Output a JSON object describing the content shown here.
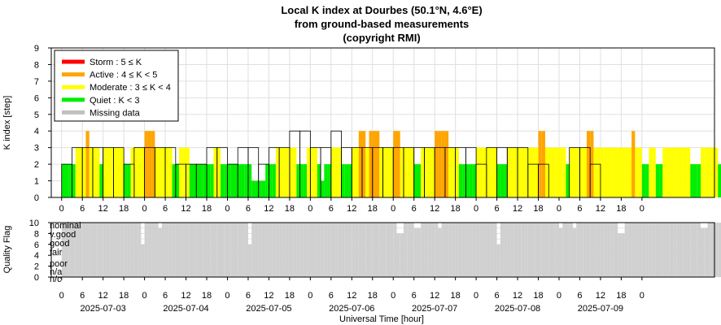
{
  "chart_data": {
    "type": "bar",
    "title": [
      "Local K index at Dourbes (50.1°N, 4.6°E)",
      "from ground-based measurements",
      "(copyright RMI)"
    ],
    "xlabel": "Universal Time [hour]",
    "ylabel_top": "K index [step]",
    "ylabel_bottom": "Quality Flag",
    "ylim_top": [
      0,
      9
    ],
    "ylim_bottom": [
      0,
      10
    ],
    "x_hour_range": [
      -3,
      189
    ],
    "hour_ticks": [
      "0",
      "6",
      "12",
      "18",
      "0",
      "6",
      "12",
      "18",
      "0",
      "6",
      "12",
      "18",
      "0",
      "6",
      "12",
      "18",
      "0",
      "6",
      "12",
      "18",
      "0",
      "6",
      "12",
      "18",
      "0",
      "6",
      "12",
      "18",
      "0"
    ],
    "dates": [
      "2025-07-03",
      "2025-07-04",
      "2025-07-05",
      "2025-07-06",
      "2025-07-07",
      "2025-07-08",
      "2025-07-09"
    ],
    "k_ticks": [
      "0",
      "1",
      "2",
      "3",
      "4",
      "5",
      "6",
      "7",
      "8",
      "9"
    ],
    "q_ticks": [
      "0",
      "2",
      "4",
      "6",
      "8",
      "10"
    ],
    "quality_labels": [
      "nominal",
      "v.good",
      "good",
      "fair",
      "poor",
      "n/a",
      "n/c"
    ],
    "legend": [
      {
        "label": "Storm : 5 ≤ K",
        "color": "#ff0000"
      },
      {
        "label": "Active : 4 ≤ K < 5",
        "color": "#ffa500"
      },
      {
        "label": "Moderate : 3 ≤ K < 4",
        "color": "#ffff00"
      },
      {
        "label": "Quiet : K < 3",
        "color": "#00ee00"
      },
      {
        "label": "Missing data",
        "color": "#c0c0c0"
      }
    ],
    "colors": {
      "storm": "#ff0000",
      "active": "#ffa500",
      "moderate": "#ffff00",
      "quiet": "#00ee00",
      "missing": "#c0c0c0",
      "quality": "#d0d0d0"
    },
    "k_3h": [
      2,
      3,
      3,
      3,
      3,
      3,
      2,
      3,
      3,
      3,
      3,
      2,
      2,
      2,
      3,
      3,
      2,
      3,
      3,
      2,
      3,
      3,
      4,
      4,
      3,
      3,
      4,
      3,
      3,
      3,
      3,
      3,
      3,
      3,
      3,
      3,
      3,
      3,
      3,
      3,
      2,
      3,
      3,
      3,
      3,
      2,
      2,
      0,
      0,
      3,
      3,
      2,
      0
    ],
    "k_1h": [
      2,
      2,
      2,
      2,
      3,
      3,
      3,
      4,
      3,
      3,
      3,
      2,
      3,
      3,
      3,
      3,
      3,
      3,
      2,
      2,
      3,
      3,
      3,
      3,
      4,
      4,
      4,
      3,
      3,
      3,
      3,
      3,
      2,
      2,
      3,
      3,
      3,
      2,
      2,
      2,
      2,
      2,
      2,
      2,
      3,
      3,
      2,
      2,
      2,
      2,
      2,
      2,
      2,
      2,
      2,
      1,
      1,
      1,
      1,
      2,
      2,
      2,
      3,
      3,
      3,
      3,
      3,
      3,
      2,
      2,
      2,
      3,
      3,
      3,
      2,
      1,
      2,
      2,
      3,
      3,
      3,
      2,
      2,
      2,
      3,
      3,
      4,
      4,
      3,
      4,
      4,
      4,
      3,
      3,
      3,
      3,
      4,
      4,
      3,
      3,
      3,
      3,
      2,
      2,
      3,
      3,
      3,
      3,
      4,
      4,
      4,
      4,
      3,
      3,
      3,
      2,
      2,
      2,
      2,
      2,
      3,
      3,
      3,
      3,
      3,
      3,
      2,
      2,
      2,
      3,
      3,
      3,
      3,
      3,
      3,
      3,
      3,
      3,
      4,
      4,
      3,
      3,
      3,
      3,
      3,
      3,
      2,
      3,
      3,
      3,
      3,
      3,
      4,
      4,
      3,
      3,
      3,
      3,
      3,
      3,
      3,
      3,
      3,
      3,
      3,
      4,
      3,
      3,
      2,
      2,
      3,
      3,
      2,
      2,
      3,
      3,
      3,
      3,
      3,
      3,
      3,
      3,
      2,
      2,
      2,
      3,
      3,
      3,
      3,
      3,
      2,
      2,
      3,
      3,
      2,
      2,
      3,
      3,
      2,
      2,
      2,
      2,
      2,
      2,
      2,
      3,
      3,
      2,
      2,
      2,
      2,
      2,
      2,
      2,
      2,
      2,
      2,
      3,
      3,
      3,
      2,
      2,
      0,
      0,
      0,
      0,
      0,
      0,
      0,
      0,
      0,
      0,
      0,
      0,
      0,
      0,
      2,
      2,
      3,
      3,
      2,
      1,
      2,
      3,
      3,
      3,
      3,
      3,
      2,
      3,
      2,
      2,
      2,
      2
    ],
    "quality_hourly": [
      10,
      10,
      10,
      10,
      10,
      10,
      10,
      10,
      10,
      10,
      10,
      10,
      10,
      10,
      10,
      10,
      10,
      10,
      10,
      10,
      10,
      10,
      10,
      6,
      10,
      10,
      10,
      10,
      9,
      10,
      10,
      10,
      10,
      10,
      10,
      10,
      10,
      10,
      10,
      10,
      10,
      10,
      10,
      10,
      10,
      10,
      10,
      10,
      10,
      10,
      10,
      10,
      10,
      10,
      6,
      10,
      10,
      10,
      10,
      10,
      10,
      10,
      10,
      10,
      10,
      10,
      10,
      10,
      10,
      10,
      10,
      10,
      10,
      10,
      10,
      10,
      10,
      10,
      10,
      10,
      10,
      10,
      10,
      10,
      10,
      10,
      10,
      10,
      10,
      10,
      10,
      10,
      10,
      10,
      10,
      10,
      10,
      8,
      8,
      10,
      10,
      10,
      9,
      9,
      10,
      10,
      10,
      10,
      10,
      9,
      10,
      10,
      10,
      10,
      10,
      10,
      10,
      10,
      10,
      10,
      10,
      10,
      10,
      10,
      10,
      10,
      6,
      10,
      10,
      10,
      10,
      10,
      10,
      10,
      10,
      10,
      10,
      10,
      10,
      10,
      10,
      10,
      10,
      10,
      9,
      10,
      10,
      10,
      9,
      10,
      10,
      10,
      10,
      10,
      10,
      10,
      10,
      10,
      10,
      10,
      10,
      8,
      8,
      10,
      10,
      10,
      10,
      10,
      10,
      10,
      10,
      10,
      10,
      10,
      10,
      10,
      10,
      10,
      10,
      10,
      10,
      10,
      10,
      10,
      10,
      9,
      9,
      10,
      10,
      10,
      10,
      10,
      10,
      10,
      10,
      9,
      10,
      10,
      10,
      10,
      10,
      10,
      10,
      10,
      10,
      10,
      8,
      10,
      10,
      10,
      10,
      10,
      10,
      10,
      10,
      10,
      10,
      8,
      10,
      10,
      10,
      10,
      10,
      8,
      6,
      10,
      10,
      10,
      10,
      1,
      1,
      0,
      0,
      0,
      0,
      0,
      0,
      0,
      0,
      0,
      0,
      0,
      0,
      0,
      1,
      2,
      4,
      6,
      10,
      10,
      10,
      10,
      10,
      10,
      10,
      10,
      8,
      10,
      10,
      10,
      10,
      10,
      10,
      10,
      10
    ]
  }
}
